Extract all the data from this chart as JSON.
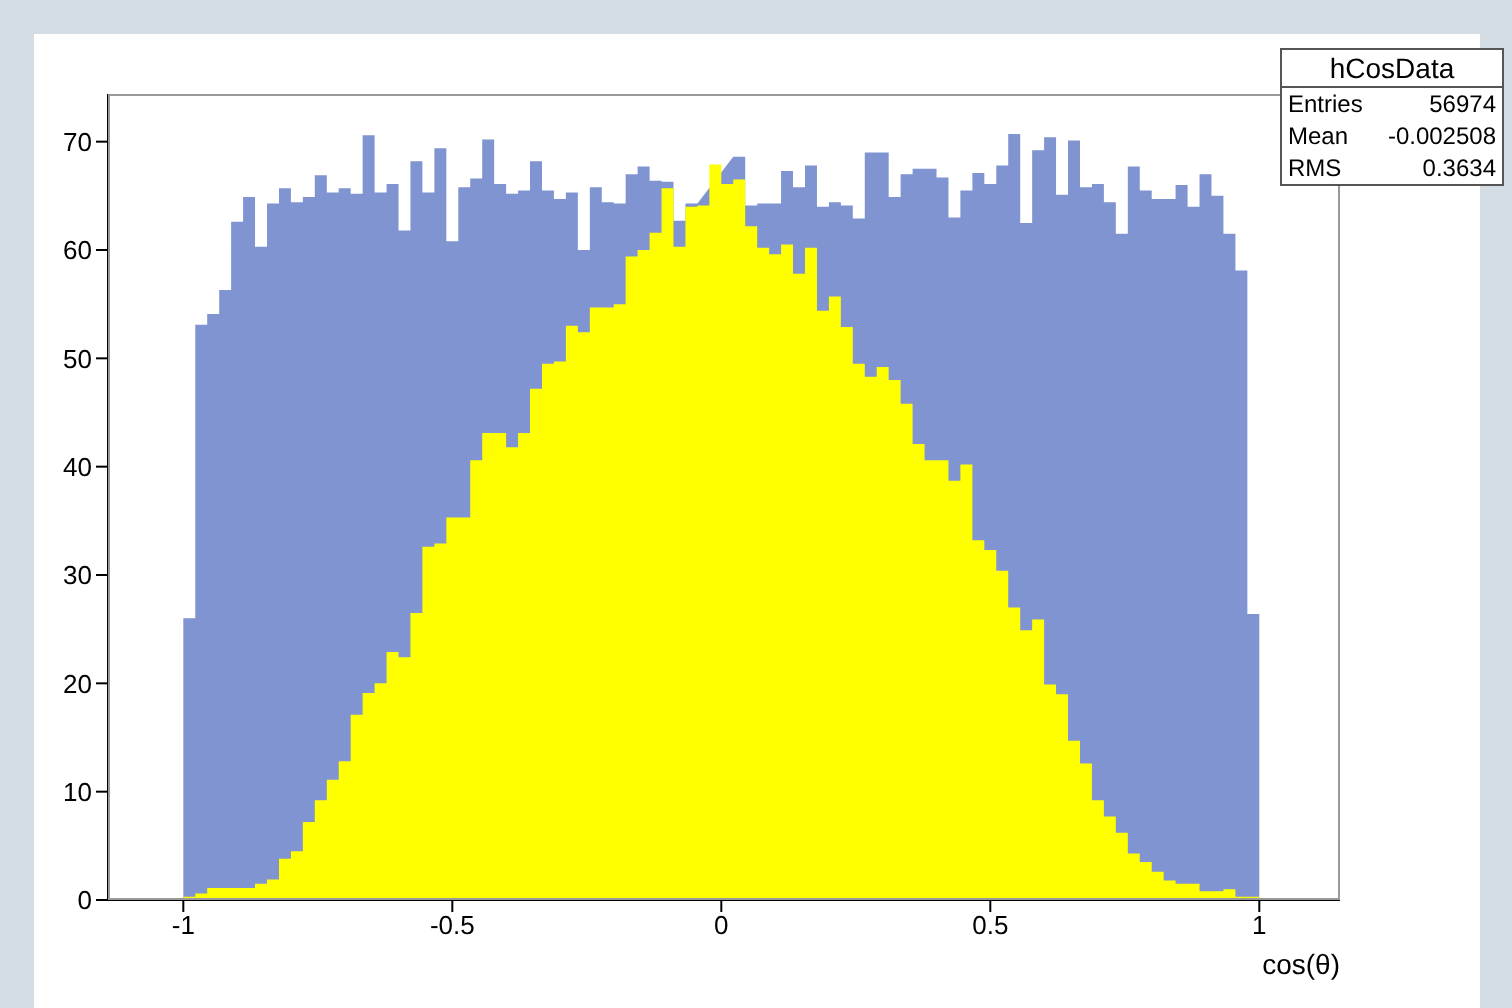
{
  "chart_data": {
    "type": "histogram",
    "xlabel": "cos(θ)",
    "bins": [
      -1,
      -0.9778,
      -0.9556,
      -0.9333,
      -0.9111,
      -0.8889,
      -0.8667,
      -0.8444,
      -0.8222,
      -0.8,
      -0.7778,
      -0.7556,
      -0.7333,
      -0.7111,
      -0.6889,
      -0.6667,
      -0.6444,
      -0.6222,
      -0.6,
      -0.5778,
      -0.5556,
      -0.5333,
      -0.5111,
      -0.4889,
      -0.4667,
      -0.4444,
      -0.4222,
      -0.4,
      -0.3778,
      -0.3556,
      -0.3333,
      -0.3111,
      -0.2889,
      -0.2667,
      -0.2444,
      -0.2222,
      -0.2,
      -0.1778,
      -0.1556,
      -0.1333,
      -0.1111,
      -0.0889,
      -0.0667,
      -0.0444,
      -0.0222,
      0,
      0.0222,
      0.0444,
      0.0667,
      0.0889,
      0.1111,
      0.1333,
      0.1556,
      0.1778,
      0.2,
      0.2222,
      0.2444,
      0.2667,
      0.2889,
      0.3111,
      0.3333,
      0.3556,
      0.3778,
      0.4,
      0.4222,
      0.4444,
      0.4667,
      0.4889,
      0.5111,
      0.5333,
      0.5556,
      0.5778,
      0.6,
      0.6222,
      0.6444,
      0.6667,
      0.6889,
      0.7111,
      0.7333,
      0.7556,
      0.7778,
      0.8,
      0.8222,
      0.8444,
      0.8667,
      0.8889,
      0.9111,
      0.9333,
      0.9556,
      0.9778,
      1
    ],
    "series": [
      {
        "color": "#7f94d0",
        "values": [
          26.0,
          53.1,
          54.1,
          56.3,
          62.6,
          64.9,
          60.3,
          64.3,
          65.7,
          64.4,
          64.9,
          66.9,
          65.3,
          65.7,
          65.2,
          70.6,
          65.3,
          66.1,
          61.8,
          68.2,
          65.3,
          69.4,
          60.8,
          65.8,
          66.6,
          70.2,
          66.1,
          65.2,
          65.5,
          68.2,
          65.5,
          64.7,
          65.3,
          60.0,
          65.8,
          64.4,
          64.3,
          67.0,
          67.7,
          66.4,
          66.3,
          62.7,
          64.3,
          null,
          null,
          null,
          68.6,
          64.1,
          64.3,
          64.3,
          67.3,
          65.8,
          67.8,
          64.0,
          64.4,
          64.1,
          62.9,
          69.0,
          69.0,
          64.9,
          67.0,
          67.5,
          67.5,
          66.7,
          63.0,
          65.5,
          67.1,
          66.1,
          67.8,
          70.7,
          62.5,
          69.2,
          70.4,
          65.1,
          70.1,
          65.8,
          66.1,
          64.4,
          61.5,
          67.7,
          65.5,
          64.7,
          64.7,
          66.0,
          64.0,
          67.0,
          65.0,
          61.5,
          58.1,
          26.4
        ]
      },
      {
        "color": "#ffff00",
        "values": [
          0.3,
          0.6,
          1.1,
          1.1,
          1.1,
          1.1,
          1.5,
          1.9,
          3.8,
          4.5,
          7.2,
          9.2,
          11.1,
          12.8,
          17.1,
          19.1,
          20.0,
          22.9,
          22.4,
          26.5,
          32.6,
          32.9,
          35.3,
          35.3,
          40.6,
          43.1,
          43.1,
          41.8,
          43.1,
          47.2,
          49.5,
          49.7,
          53.0,
          52.4,
          54.7,
          54.7,
          55.0,
          59.4,
          60.0,
          61.6,
          65.7,
          60.3,
          64.0,
          64.1,
          67.9,
          66.1,
          66.5,
          62.2,
          60.2,
          59.6,
          60.5,
          57.8,
          60.2,
          54.4,
          55.7,
          52.9,
          49.5,
          48.3,
          49.2,
          48.0,
          45.8,
          42.1,
          40.6,
          40.6,
          38.7,
          40.2,
          33.2,
          32.3,
          30.4,
          27.0,
          24.9,
          25.9,
          19.9,
          19.0,
          14.7,
          12.6,
          9.2,
          7.7,
          6.2,
          4.3,
          3.5,
          2.6,
          1.8,
          1.5,
          1.5,
          0.8,
          0.8,
          1.0,
          0.3,
          0.3
        ]
      }
    ],
    "xlim": [
      -1.14,
      1.15
    ],
    "xticks": [
      -1,
      -0.5,
      0,
      0.5,
      1
    ],
    "ylim": [
      0,
      74.4
    ],
    "yticks": [
      0,
      10,
      20,
      30,
      40,
      50,
      60,
      70
    ],
    "annotations": [
      "hCosData",
      "Entries",
      "56974",
      "Mean",
      "-0.002508",
      "RMS",
      "0.3634"
    ]
  }
}
